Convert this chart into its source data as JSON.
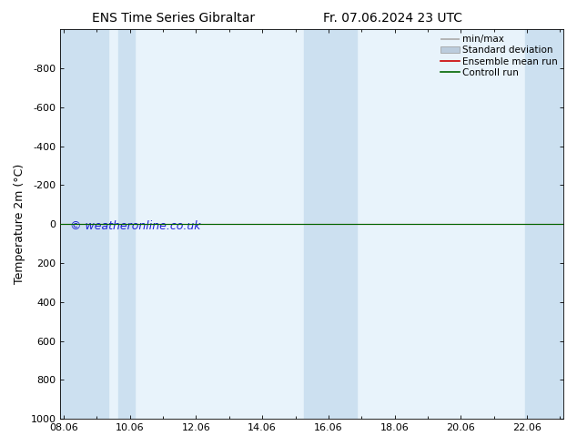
{
  "title_left": "ENS Time Series Gibraltar",
  "title_right": "Fr. 07.06.2024 23 UTC",
  "ylabel": "Temperature 2m (°C)",
  "watermark": "© weatheronline.co.uk",
  "ylim_top": -1000,
  "ylim_bottom": 1000,
  "yticks": [
    -800,
    -600,
    -400,
    -200,
    0,
    200,
    400,
    600,
    800,
    1000
  ],
  "xtick_labels": [
    "08.06",
    "10.06",
    "12.06",
    "14.06",
    "16.06",
    "18.06",
    "20.06",
    "22.06"
  ],
  "xtick_positions": [
    8,
    10,
    12,
    14,
    16,
    18,
    20,
    22
  ],
  "xlim": [
    7.9,
    23.1
  ],
  "shade_bands": [
    [
      7.9,
      9.35
    ],
    [
      9.65,
      10.15
    ],
    [
      15.25,
      16.85
    ],
    [
      21.95,
      23.1
    ]
  ],
  "shade_color": "#cce0f0",
  "bg_color": "#ffffff",
  "plot_bg_color": "#e8f3fb",
  "line_color_ensemble": "#cc0000",
  "line_color_control": "#006600",
  "minmax_color": "#aaaaaa",
  "std_color": "#bbccdd",
  "title_fontsize": 10,
  "axis_label_fontsize": 9,
  "tick_fontsize": 8,
  "legend_fontsize": 7.5,
  "watermark_fontsize": 9
}
